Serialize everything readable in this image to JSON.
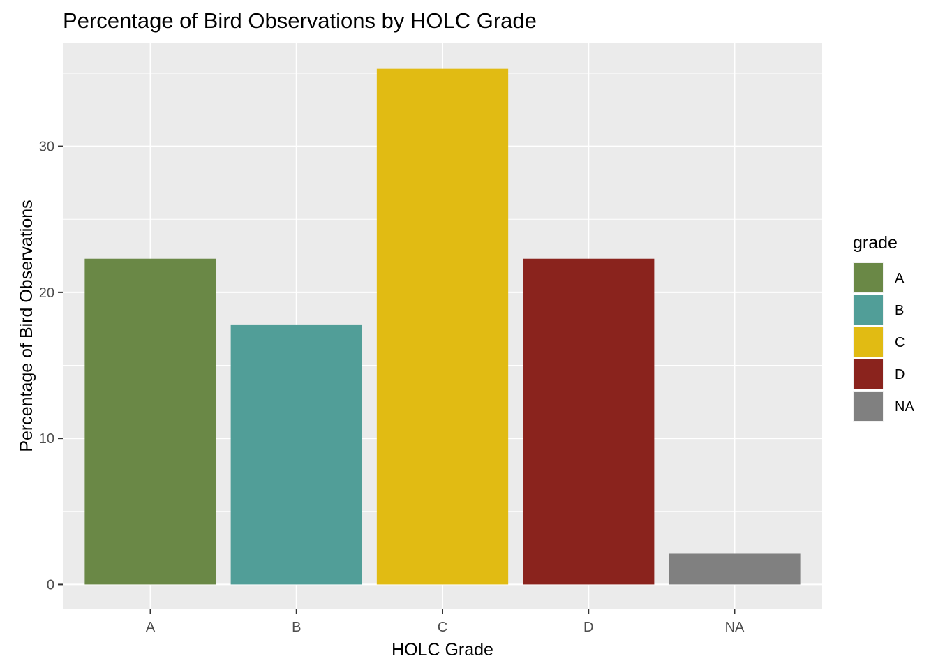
{
  "chart_data": {
    "type": "bar",
    "title": "Percentage of Bird Observations by HOLC Grade",
    "xlabel": "HOLC Grade",
    "ylabel": "Percentage of Bird Observations",
    "categories": [
      "A",
      "B",
      "C",
      "D",
      "NA"
    ],
    "values": [
      22.3,
      17.8,
      35.3,
      22.3,
      2.1
    ],
    "colors": [
      "#6A8846",
      "#519E98",
      "#E1BB13",
      "#8A231D",
      "#808080"
    ],
    "ylim": [
      -1.7,
      37.1
    ],
    "yticks": [
      0,
      10,
      20,
      30
    ],
    "grid": true,
    "panel_background": "#EBEBEB",
    "legend": {
      "title": "grade",
      "position": "right",
      "entries": [
        "A",
        "B",
        "C",
        "D",
        "NA"
      ]
    }
  }
}
